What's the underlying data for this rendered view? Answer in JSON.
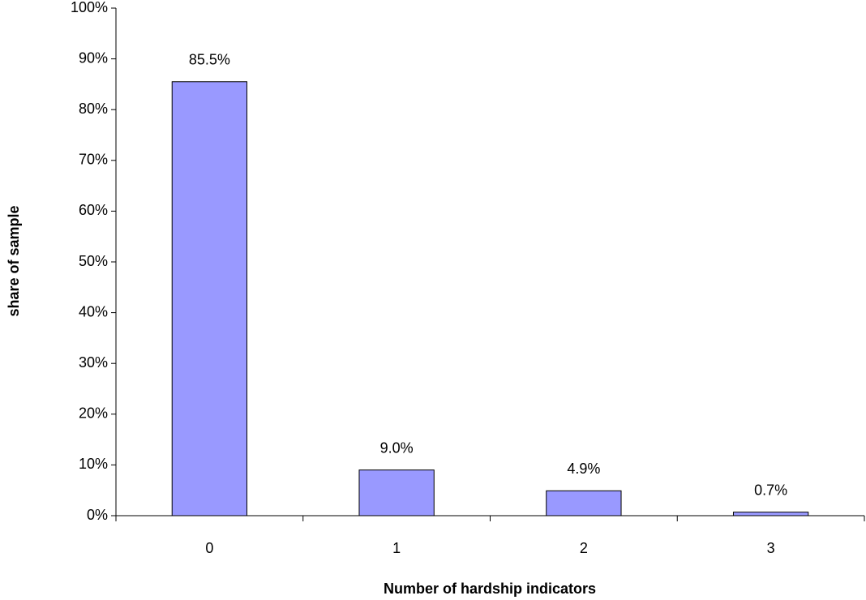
{
  "chart_data": {
    "type": "bar",
    "x_label": "Number of hardship indicators",
    "y_label": "share of sample",
    "categories": [
      "0",
      "1",
      "2",
      "3"
    ],
    "values": [
      85.5,
      9.0,
      4.9,
      0.7
    ],
    "value_labels": [
      "85.5%",
      "9.0%",
      "4.9%",
      "0.7%"
    ],
    "color": "#9999ff",
    "ylim": [
      0,
      100
    ],
    "yticks": [
      {
        "value": 0,
        "label": "0%"
      },
      {
        "value": 10,
        "label": "10%"
      },
      {
        "value": 20,
        "label": "20%"
      },
      {
        "value": 30,
        "label": "30%"
      },
      {
        "value": 40,
        "label": "40%"
      },
      {
        "value": 50,
        "label": "50%"
      },
      {
        "value": 60,
        "label": "60%"
      },
      {
        "value": 70,
        "label": "70%"
      },
      {
        "value": 80,
        "label": "80%"
      },
      {
        "value": 90,
        "label": "90%"
      },
      {
        "value": 100,
        "label": "100%"
      }
    ],
    "grid": false
  }
}
